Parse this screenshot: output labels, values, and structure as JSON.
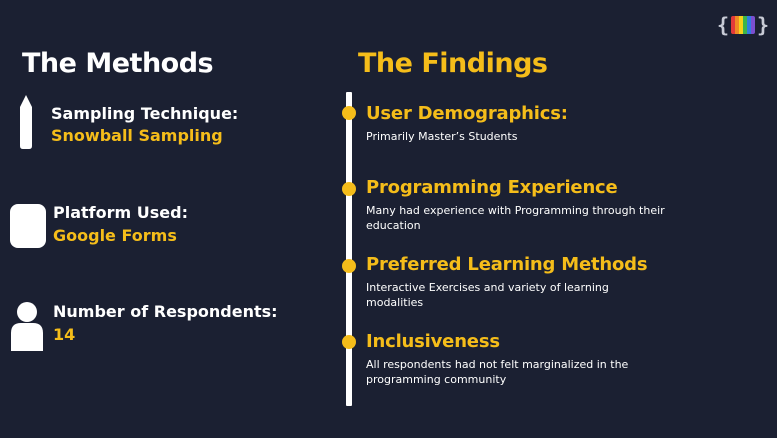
{
  "logo": {
    "left_brace": "{",
    "right_brace": "}",
    "colors": [
      "#e23a3a",
      "#f08a24",
      "#f5d21a",
      "#3bb54a",
      "#2f7de1",
      "#7b4fd0"
    ]
  },
  "methods": {
    "title": "The Methods",
    "items": [
      {
        "label": "Sampling Technique:",
        "value": "Snowball Sampling",
        "icon": "pencil-icon"
      },
      {
        "label": "Platform Used:",
        "value": "Google Forms",
        "icon": "form-icon"
      },
      {
        "label": "Number of Respondents:",
        "value": "14",
        "icon": "person-icon"
      }
    ]
  },
  "findings": {
    "title": "The Findings",
    "items": [
      {
        "title": "User Demographics:",
        "desc": "Primarily Master’s Students"
      },
      {
        "title": "Programming Experience",
        "desc": "Many had experience with Programming through their education"
      },
      {
        "title": "Preferred Learning Methods",
        "desc": "Interactive Exercises and variety of learning modalities"
      },
      {
        "title": "Inclusiveness",
        "desc": "All respondents had not felt marginalized in the programming community"
      }
    ]
  },
  "colors": {
    "background": "#1b2032",
    "accent": "#f5bd1a",
    "text": "#ffffff"
  }
}
